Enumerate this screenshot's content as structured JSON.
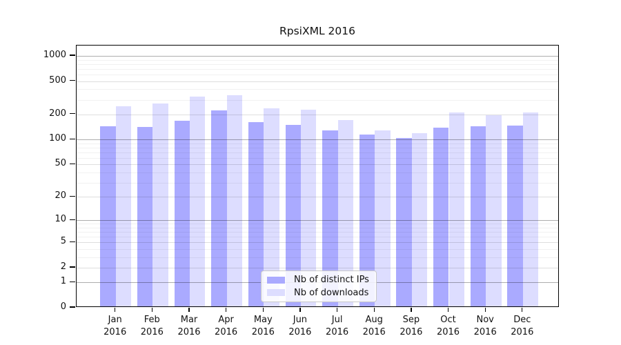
{
  "chart_data": {
    "type": "bar",
    "title": "RpsiXML 2016",
    "categories": [
      "Jan",
      "Feb",
      "Mar",
      "Apr",
      "May",
      "Jun",
      "Jul",
      "Aug",
      "Sep",
      "Oct",
      "Nov",
      "Dec"
    ],
    "x_axis": {
      "year_label": "2016"
    },
    "y_axis": {
      "scale": "log1p",
      "ticks": [
        0,
        1,
        2,
        5,
        10,
        20,
        50,
        100,
        200,
        500,
        1000
      ],
      "grid": "major-and-minor",
      "ylim_top_approx": 1300
    },
    "series": [
      {
        "name": "Nb of distinct IPs",
        "slug": "distinct-ips",
        "color": "#aaaaff",
        "values": [
          140,
          137,
          162,
          215,
          157,
          145,
          125,
          110,
          100,
          135,
          138,
          142
        ]
      },
      {
        "name": "Nb of downloads",
        "slug": "downloads",
        "color": "#ddddff",
        "values": [
          242,
          260,
          315,
          325,
          227,
          220,
          165,
          124,
          115,
          203,
          187,
          202
        ]
      }
    ],
    "legend": {
      "position": "inside-bottom-center"
    }
  },
  "colors": {
    "bar_distinct_ips": "#aaaaff",
    "bar_downloads": "#ddddff",
    "frame": "#000000",
    "grid_major": "rgba(0,0,0,0.32)",
    "grid_mid": "rgba(0,0,0,0.13)",
    "grid_minor": "rgba(0,0,0,0.055)",
    "background": "#ffffff"
  }
}
